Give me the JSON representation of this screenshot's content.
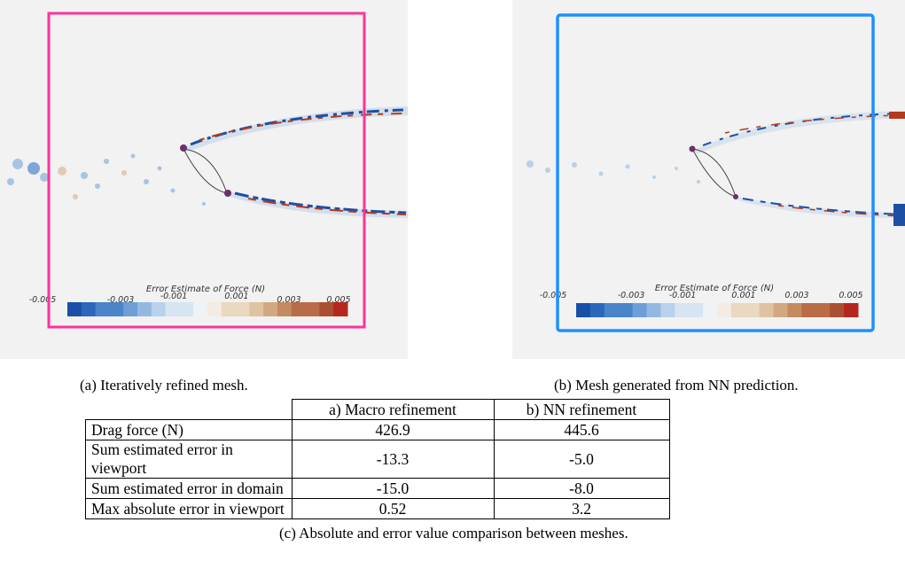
{
  "panels": [
    {
      "id": "a",
      "frame_color": "#ff3399",
      "colorbar": {
        "title": "Error Estimate of Force (N)",
        "ticks": [
          "-0.005",
          "-0.003",
          "-0.001",
          "0.001",
          "0.003",
          "0.005"
        ]
      },
      "caption": "(a) Iteratively refined mesh."
    },
    {
      "id": "b",
      "frame_color": "#1e90ff",
      "colorbar": {
        "title": "Error Estimate of Force (N)",
        "ticks": [
          "-0.005",
          "-0.003",
          "-0.001",
          "0.001",
          "0.003",
          "0.005"
        ]
      },
      "caption": "(b) Mesh generated from NN prediction."
    }
  ],
  "table": {
    "headers": [
      "",
      "a) Macro refinement",
      "b) NN refinement"
    ],
    "rows": [
      [
        "Drag force (N)",
        "426.9",
        "445.6"
      ],
      [
        "Sum estimated error in viewport",
        "-13.3",
        "-5.0"
      ],
      [
        "Sum estimated error in domain",
        "-15.0",
        "-8.0"
      ],
      [
        "Max absolute error in viewport",
        "0.52",
        "3.2"
      ]
    ],
    "caption": "(c) Absolute and error value comparison between meshes."
  },
  "colors": {
    "background_field": "#f1f2f1",
    "negative": "#1a4fa8",
    "positive": "#b5361f"
  }
}
